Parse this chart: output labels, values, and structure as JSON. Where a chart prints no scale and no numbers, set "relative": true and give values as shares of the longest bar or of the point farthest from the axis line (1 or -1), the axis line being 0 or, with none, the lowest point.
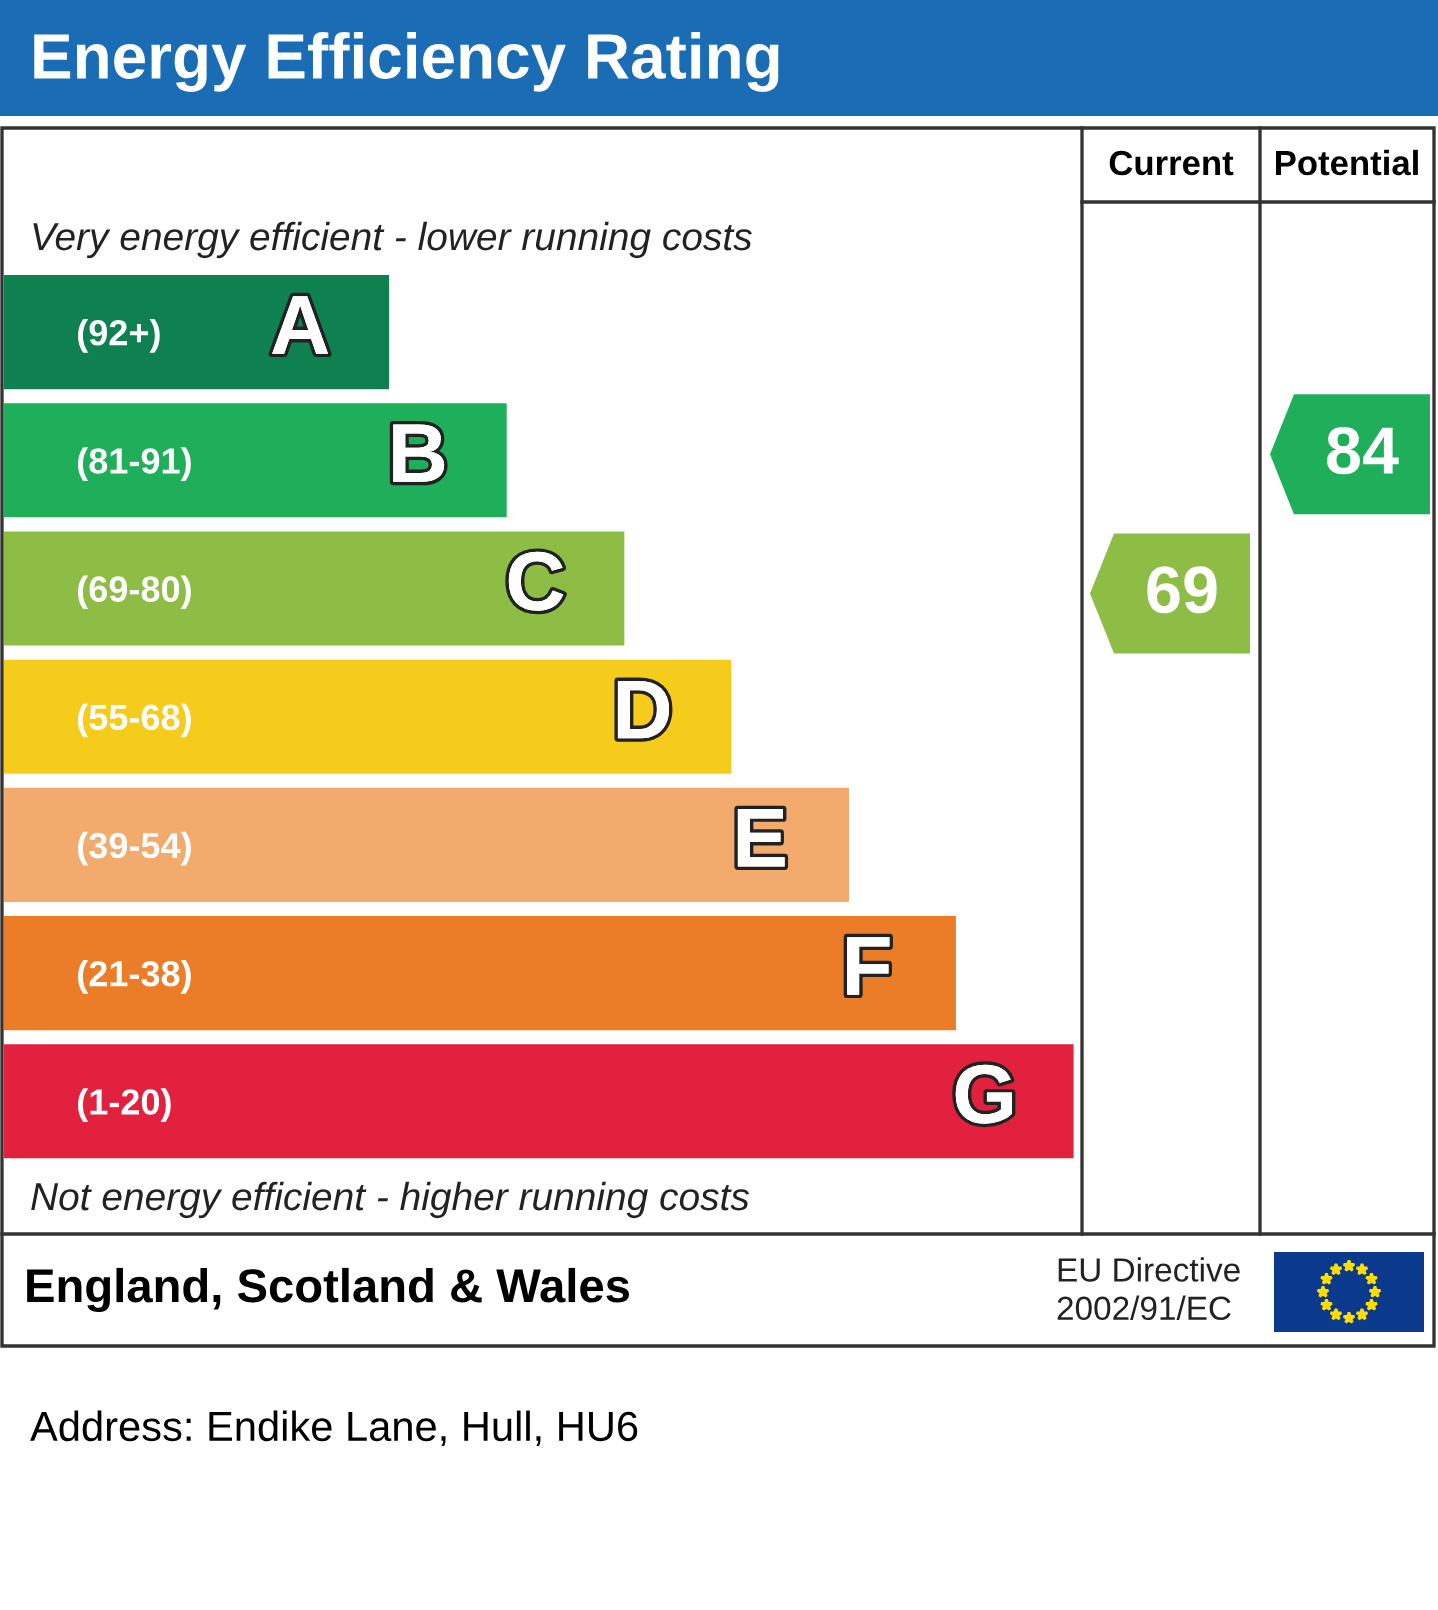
{
  "chart_data": {
    "type": "bar",
    "orientation": "horizontal",
    "relative": true,
    "tick_labels": "y",
    "title": "Energy Efficiency Rating",
    "categories": [
      "(92+)",
      "(81-91)",
      "(69-80)",
      "(55-68)",
      "(39-54)",
      "(21-38)",
      "(1-20)"
    ],
    "values": [
      0.36,
      0.47,
      0.58,
      0.68,
      0.79,
      0.89,
      1.0
    ],
    "colors": [
      "#0f8151",
      "#1fae5a",
      "#8dbd45",
      "#f5cb1c",
      "#f2aa6d",
      "#eb7d28",
      "#e1213d"
    ],
    "annotations": [
      "Very energy efficient - lower running costs",
      "Not energy efficient - higher running costs",
      "Current",
      "Potential",
      "69",
      "84",
      "England, Scotland & Wales",
      "EU Directive\n2002/91/EC",
      "Address: Endike Lane, Hull, HU6",
      {
        "text": "A",
        "y": "(92+)"
      },
      {
        "text": "B",
        "y": "(81-91)"
      },
      {
        "text": "C",
        "y": "(69-80)"
      },
      {
        "text": "D",
        "y": "(55-68)"
      },
      {
        "text": "E",
        "y": "(39-54)"
      },
      {
        "text": "F",
        "y": "(21-38)"
      },
      {
        "text": "G",
        "y": "(1-20)"
      }
    ]
  }
}
